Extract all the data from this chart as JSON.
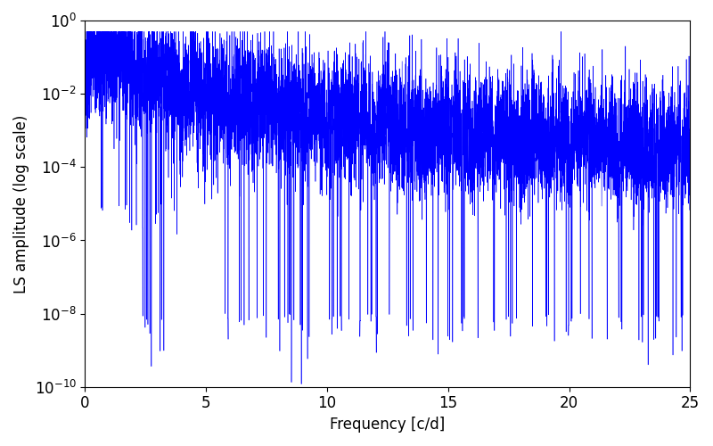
{
  "xlabel": "Frequency [c/d]",
  "ylabel": "LS amplitude (log scale)",
  "line_color": "#0000ff",
  "background_color": "#ffffff",
  "xlim": [
    0,
    25
  ],
  "ylim": [
    1e-10,
    1.0
  ],
  "freq_max": 25,
  "n_points": 8000,
  "seed": 7,
  "figsize": [
    8.0,
    5.0
  ],
  "dpi": 100,
  "tick_labelsize": 12,
  "label_fontsize": 12,
  "xticks": [
    0,
    5,
    10,
    15,
    20,
    25
  ]
}
